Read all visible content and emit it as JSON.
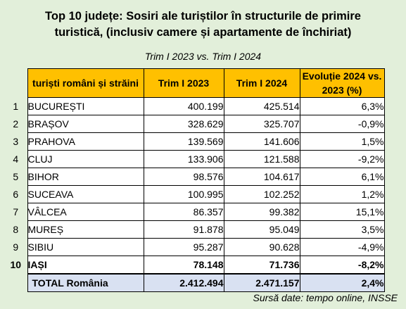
{
  "title": "Top 10 județe: Sosiri ale turiștilor în structurile de primire turistică, (inclusiv camere și apartamente de închiriat)",
  "title_line1": "Top 10 județe: Sosiri ale turiștilor în structurile de primire",
  "title_line2": "turistică, (inclusiv camere și apartamente de închiriat)",
  "subtitle": "Trim I 2023 vs. Trim I 2024",
  "headers": {
    "name": "turiști români și străini",
    "q2023": "Trim I 2023",
    "q2024": "Trim I 2024",
    "evo": "Evoluție 2024 vs. 2023 (%)"
  },
  "rows": [
    {
      "rank": "1",
      "name": "BUCUREȘTI",
      "q2023": "400.199",
      "q2024": "425.514",
      "evo": "6,3%"
    },
    {
      "rank": "2",
      "name": "BRAȘOV",
      "q2023": "328.629",
      "q2024": "325.707",
      "evo": "-0,9%"
    },
    {
      "rank": "3",
      "name": "PRAHOVA",
      "q2023": "139.569",
      "q2024": "141.606",
      "evo": "1,5%"
    },
    {
      "rank": "4",
      "name": "CLUJ",
      "q2023": "133.906",
      "q2024": "121.588",
      "evo": "-9,2%"
    },
    {
      "rank": "5",
      "name": "BIHOR",
      "q2023": "98.576",
      "q2024": "104.617",
      "evo": "6,1%"
    },
    {
      "rank": "6",
      "name": "SUCEAVA",
      "q2023": "100.995",
      "q2024": "102.252",
      "evo": "1,2%"
    },
    {
      "rank": "7",
      "name": "VÂLCEA",
      "q2023": "86.357",
      "q2024": "99.382",
      "evo": "15,1%"
    },
    {
      "rank": "8",
      "name": "MUREȘ",
      "q2023": "91.878",
      "q2024": "95.049",
      "evo": "3,5%"
    },
    {
      "rank": "9",
      "name": "SIBIU",
      "q2023": "95.287",
      "q2024": "90.628",
      "evo": "-4,9%"
    },
    {
      "rank": "10",
      "name": "IAȘI",
      "q2023": "78.148",
      "q2024": "71.736",
      "evo": "-8,2%"
    }
  ],
  "total": {
    "name": "TOTAL România",
    "q2023": "2.412.494",
    "q2024": "2.471.157",
    "evo": "2,4%"
  },
  "source": "Sursă date: tempo online, INSSE",
  "colors": {
    "background": "#e2efda",
    "header": "#ffc000",
    "total_row": "#d9e1f2"
  }
}
